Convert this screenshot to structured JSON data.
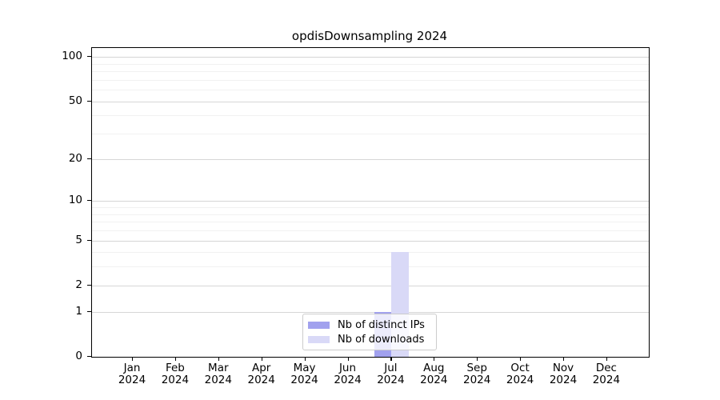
{
  "chart_data": {
    "type": "bar",
    "title": "opdisDownsampling 2024",
    "x_year": "2024",
    "categories": [
      "Jan",
      "Feb",
      "Mar",
      "Apr",
      "May",
      "Jun",
      "Jul",
      "Aug",
      "Sep",
      "Oct",
      "Nov",
      "Dec"
    ],
    "series": [
      {
        "name": "Nb of distinct IPs",
        "color": "#a1a1ee",
        "values": [
          0,
          0,
          0,
          0,
          0,
          0,
          1,
          0,
          0,
          0,
          0,
          0
        ]
      },
      {
        "name": "Nb of downloads",
        "color": "#d9d9f7",
        "values": [
          0,
          0,
          0,
          0,
          0,
          0,
          4,
          0,
          0,
          0,
          0,
          0
        ]
      }
    ],
    "yscale": "log1p",
    "ylim": [
      0,
      115
    ],
    "yticks": [
      0,
      1,
      2,
      5,
      10,
      20,
      50,
      100
    ],
    "minor_yticks": [
      3,
      4,
      6,
      7,
      8,
      9,
      30,
      40,
      60,
      70,
      80,
      90
    ],
    "legend_position": "lower-center",
    "grid": "horizontal",
    "colors": {
      "major_grid": "#d6d6d6",
      "minor_grid": "#f1f1f1",
      "axis": "#000000",
      "legend_border": "#cccccc"
    }
  }
}
